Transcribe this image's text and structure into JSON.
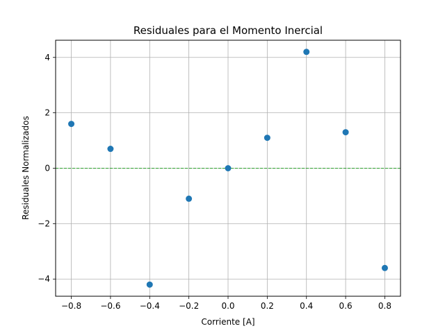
{
  "chart_data": {
    "type": "scatter",
    "title": "Residuales para el Momento Inercial",
    "xlabel": "Corriente [A]",
    "ylabel": "Residuales Normalizados",
    "xlim": [
      -0.88,
      0.88
    ],
    "ylim": [
      -4.62,
      4.62
    ],
    "xticks": [
      -0.8,
      -0.6,
      -0.4,
      -0.2,
      0.0,
      0.2,
      0.4,
      0.6,
      0.8
    ],
    "xtick_labels": [
      "−0.8",
      "−0.6",
      "−0.4",
      "−0.2",
      "0.0",
      "0.2",
      "0.4",
      "0.6",
      "0.8"
    ],
    "yticks": [
      -4,
      -2,
      0,
      2,
      4
    ],
    "ytick_labels": [
      "−4",
      "−2",
      "0",
      "2",
      "4"
    ],
    "grid": true,
    "reference_line": {
      "y": 0,
      "color": "#2ca02c",
      "style": "dashed"
    },
    "series": [
      {
        "color": "#1f77b4",
        "x": [
          -0.8,
          -0.6,
          -0.4,
          -0.2,
          0.0,
          0.2,
          0.4,
          0.6,
          0.8
        ],
        "y": [
          1.6,
          0.7,
          -4.2,
          -1.1,
          0.0,
          1.1,
          4.2,
          1.3,
          -3.6
        ]
      }
    ]
  }
}
